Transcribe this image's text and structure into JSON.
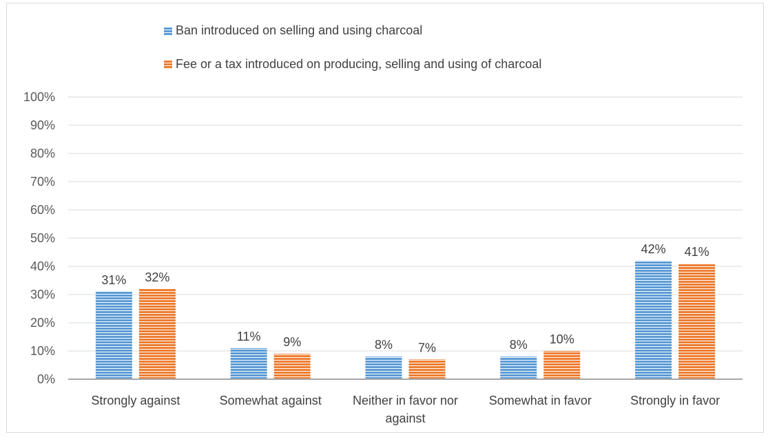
{
  "chart_data": {
    "type": "bar",
    "title": "",
    "xlabel": "",
    "ylabel": "",
    "categories": [
      "Strongly against",
      "Somewhat against",
      "Neither in favor nor against",
      "Somewhat in favor",
      "Strongly in favor"
    ],
    "category_label_lines": [
      [
        "Strongly against"
      ],
      [
        "Somewhat against"
      ],
      [
        "Neither in favor nor",
        "against"
      ],
      [
        "Somewhat in favor"
      ],
      [
        "Strongly in favor"
      ]
    ],
    "series": [
      {
        "name": "Ban introduced on selling and using charcoal",
        "color": "#5b9bd5",
        "values": [
          31,
          11,
          8,
          8,
          42
        ],
        "labels": [
          "31%",
          "11%",
          "8%",
          "8%",
          "42%"
        ]
      },
      {
        "name": "Fee or a tax introduced on producing, selling and using of charcoal",
        "color": "#ed7d31",
        "values": [
          32,
          9,
          7,
          10,
          41
        ],
        "labels": [
          "32%",
          "9%",
          "7%",
          "10%",
          "41%"
        ]
      }
    ],
    "ylim": [
      0,
      100
    ],
    "yticks": [
      0,
      10,
      20,
      30,
      40,
      50,
      60,
      70,
      80,
      90,
      100
    ],
    "ytick_labels": [
      "0%",
      "10%",
      "20%",
      "30%",
      "40%",
      "50%",
      "60%",
      "70%",
      "80%",
      "90%",
      "100%"
    ],
    "grid": true,
    "legend_position": "top-center",
    "bar_pattern": "horizontal-stripes"
  }
}
